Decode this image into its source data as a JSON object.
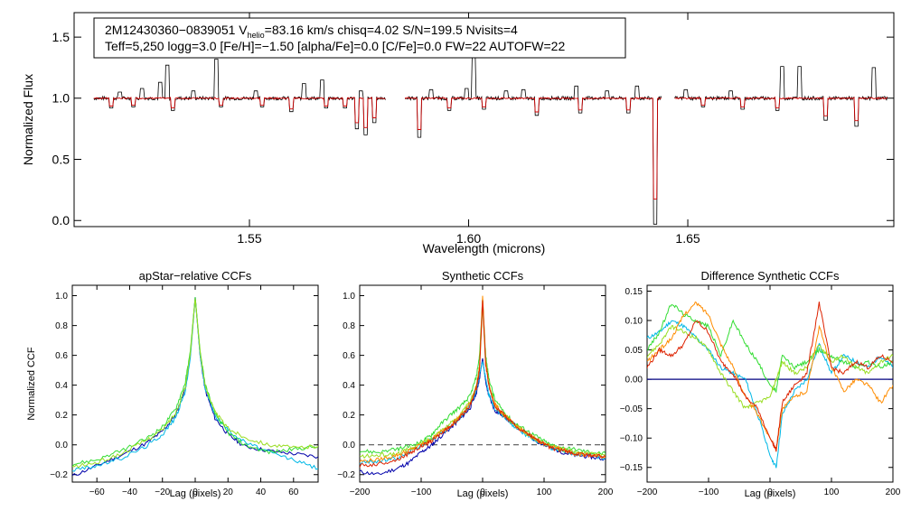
{
  "colors": {
    "observed": "#000000",
    "model": "#cc0000",
    "zero_line": "#000080",
    "dashed": "#555555",
    "series": [
      "#0000aa",
      "#00b8e6",
      "#33dd33",
      "#99dd22",
      "#ff8c00",
      "#dd2200"
    ]
  },
  "chart_data": [
    {
      "id": "spectrum",
      "type": "line",
      "title": "",
      "info_line1_prefix": "2M12430360−0839051  V",
      "info_line1_sub": "helio",
      "info_line1_suffix": "=83.16 km/s  chisq=4.02  S/N=199.5  Nvisits=4",
      "info_line2": "Teff=5,250 logg=3.0 [Fe/H]=−1.50 [alpha/Fe]=0.0 [C/Fe]=0.0 FW=22 AUTOFW=22",
      "xlabel": "Wavelength (microns)",
      "ylabel": "Normalized Flux",
      "xlim": [
        1.51,
        1.697
      ],
      "ylim": [
        -0.05,
        1.7
      ],
      "xticks": [
        1.55,
        1.6,
        1.65
      ],
      "xtick_labels": [
        "1.55",
        "1.60",
        "1.65"
      ],
      "yticks": [
        0.0,
        0.5,
        1.0,
        1.5
      ],
      "ytick_labels": [
        "0.0",
        "0.5",
        "1.0",
        "1.5"
      ],
      "chips": [
        [
          1.5145,
          1.581
        ],
        [
          1.5855,
          1.644
        ],
        [
          1.647,
          1.6955
        ]
      ],
      "series": [
        {
          "name": "observed",
          "continuum": 1.0
        },
        {
          "name": "model",
          "continuum": 1.0
        }
      ],
      "emission_lines": [
        {
          "x": 1.5205,
          "y": 1.05
        },
        {
          "x": 1.5255,
          "y": 1.08
        },
        {
          "x": 1.5297,
          "y": 1.13
        },
        {
          "x": 1.5312,
          "y": 1.27
        },
        {
          "x": 1.5372,
          "y": 1.06
        },
        {
          "x": 1.5425,
          "y": 1.32
        },
        {
          "x": 1.5515,
          "y": 1.06
        },
        {
          "x": 1.5625,
          "y": 1.12
        },
        {
          "x": 1.5665,
          "y": 1.15
        },
        {
          "x": 1.5755,
          "y": 1.06
        },
        {
          "x": 1.5915,
          "y": 1.07
        },
        {
          "x": 1.5995,
          "y": 1.08
        },
        {
          "x": 1.6012,
          "y": 1.33
        },
        {
          "x": 1.6085,
          "y": 1.06
        },
        {
          "x": 1.6125,
          "y": 1.07
        },
        {
          "x": 1.6245,
          "y": 1.1
        },
        {
          "x": 1.6315,
          "y": 1.06
        },
        {
          "x": 1.6385,
          "y": 1.1
        },
        {
          "x": 1.6495,
          "y": 1.07
        },
        {
          "x": 1.6598,
          "y": 1.06
        },
        {
          "x": 1.6715,
          "y": 1.26
        },
        {
          "x": 1.6755,
          "y": 1.26
        },
        {
          "x": 1.6925,
          "y": 1.25
        }
      ],
      "absorption_lines": [
        {
          "x": 1.5185,
          "y": 0.92
        },
        {
          "x": 1.5235,
          "y": 0.93
        },
        {
          "x": 1.5325,
          "y": 0.9
        },
        {
          "x": 1.5435,
          "y": 0.93
        },
        {
          "x": 1.5528,
          "y": 0.93
        },
        {
          "x": 1.5595,
          "y": 0.89
        },
        {
          "x": 1.5675,
          "y": 0.92
        },
        {
          "x": 1.5718,
          "y": 0.92
        },
        {
          "x": 1.5745,
          "y": 0.75
        },
        {
          "x": 1.5765,
          "y": 0.7
        },
        {
          "x": 1.5785,
          "y": 0.8
        },
        {
          "x": 1.5888,
          "y": 0.68
        },
        {
          "x": 1.5955,
          "y": 0.9
        },
        {
          "x": 1.6035,
          "y": 0.91
        },
        {
          "x": 1.6155,
          "y": 0.86
        },
        {
          "x": 1.6255,
          "y": 0.88
        },
        {
          "x": 1.6365,
          "y": 0.88
        },
        {
          "x": 1.6425,
          "y": -0.03
        },
        {
          "x": 1.6535,
          "y": 0.93
        },
        {
          "x": 1.6625,
          "y": 0.91
        },
        {
          "x": 1.6705,
          "y": 0.9
        },
        {
          "x": 1.6815,
          "y": 0.82
        },
        {
          "x": 1.6885,
          "y": 0.77
        }
      ]
    },
    {
      "id": "apstar_ccf",
      "type": "line",
      "title": "apStar−relative CCFs",
      "xlabel": "Lag (pixels)",
      "ylabel": "Normalized CCF",
      "xlim": [
        -75,
        75
      ],
      "ylim": [
        -0.25,
        1.07
      ],
      "xticks": [
        -60,
        -40,
        -20,
        0,
        20,
        40,
        60
      ],
      "xtick_labels": [
        "−60",
        "−40",
        "−20",
        "0",
        "20",
        "40",
        "60"
      ],
      "yticks": [
        -0.2,
        0.0,
        0.2,
        0.4,
        0.6,
        0.8,
        1.0
      ],
      "ytick_labels": [
        "−0.2",
        "0.0",
        "0.2",
        "0.4",
        "0.6",
        "0.8",
        "1.0"
      ],
      "x": [
        -75,
        -60,
        -45,
        -30,
        -20,
        -12,
        -6,
        -3,
        0,
        3,
        6,
        12,
        20,
        30,
        45,
        60,
        75
      ],
      "series": [
        {
          "name": "ccf-1",
          "values": [
            -0.21,
            -0.14,
            -0.07,
            0.01,
            0.09,
            0.2,
            0.38,
            0.6,
            0.99,
            0.6,
            0.37,
            0.18,
            0.07,
            -0.01,
            -0.04,
            -0.06,
            -0.08
          ]
        },
        {
          "name": "ccf-2",
          "values": [
            -0.17,
            -0.14,
            -0.09,
            -0.01,
            0.07,
            0.18,
            0.36,
            0.58,
            0.98,
            0.6,
            0.38,
            0.2,
            0.1,
            0.02,
            -0.05,
            -0.1,
            -0.16
          ]
        },
        {
          "name": "ccf-3",
          "values": [
            -0.13,
            -0.1,
            -0.04,
            0.04,
            0.12,
            0.24,
            0.42,
            0.63,
            0.99,
            0.63,
            0.41,
            0.21,
            0.08,
            0.0,
            -0.05,
            -0.03,
            -0.01
          ]
        },
        {
          "name": "ccf-4",
          "values": [
            -0.15,
            -0.12,
            -0.06,
            0.03,
            0.1,
            0.21,
            0.39,
            0.61,
            0.98,
            0.62,
            0.4,
            0.22,
            0.11,
            0.05,
            0.0,
            -0.02,
            -0.01
          ]
        }
      ]
    },
    {
      "id": "synthetic_ccf",
      "type": "line",
      "title": "Synthetic CCFs",
      "xlabel": "Lag (pixels)",
      "ylabel": "",
      "xlim": [
        -200,
        200
      ],
      "ylim": [
        -0.25,
        1.07
      ],
      "reference_line": 0.0,
      "xticks": [
        -200,
        -100,
        0,
        100,
        200
      ],
      "xtick_labels": [
        "−200",
        "−100",
        "0",
        "100",
        "200"
      ],
      "yticks": [
        -0.2,
        0.0,
        0.2,
        0.4,
        0.6,
        0.8,
        1.0
      ],
      "ytick_labels": [
        "−0.2",
        "0.0",
        "0.2",
        "0.4",
        "0.6",
        "0.8",
        "1.0"
      ],
      "x": [
        -200,
        -170,
        -140,
        -120,
        -100,
        -85,
        -70,
        -50,
        -35,
        -20,
        -10,
        -5,
        0,
        5,
        10,
        20,
        35,
        50,
        70,
        90,
        110,
        130,
        150,
        175,
        200
      ],
      "series": [
        {
          "name": "synth-1",
          "values": [
            -0.18,
            -0.2,
            -0.16,
            -0.12,
            -0.05,
            -0.01,
            0.05,
            0.12,
            0.18,
            0.25,
            0.35,
            0.45,
            0.58,
            0.42,
            0.33,
            0.23,
            0.19,
            0.14,
            0.08,
            0.02,
            -0.02,
            -0.05,
            -0.07,
            -0.08,
            -0.1
          ]
        },
        {
          "name": "synth-2",
          "values": [
            -0.12,
            -0.11,
            -0.09,
            -0.05,
            0.0,
            0.03,
            0.07,
            0.13,
            0.19,
            0.27,
            0.37,
            0.47,
            0.56,
            0.44,
            0.34,
            0.24,
            0.19,
            0.13,
            0.07,
            0.02,
            -0.02,
            -0.04,
            -0.06,
            -0.07,
            -0.09
          ]
        },
        {
          "name": "synth-3",
          "values": [
            -0.04,
            -0.05,
            -0.03,
            -0.01,
            0.02,
            0.06,
            0.13,
            0.21,
            0.26,
            0.33,
            0.46,
            0.6,
            0.98,
            0.6,
            0.45,
            0.3,
            0.22,
            0.15,
            0.1,
            0.05,
            0.0,
            -0.02,
            -0.03,
            -0.05,
            -0.06
          ]
        },
        {
          "name": "synth-4",
          "values": [
            -0.08,
            -0.07,
            -0.06,
            -0.03,
            0.01,
            0.04,
            0.09,
            0.15,
            0.21,
            0.29,
            0.4,
            0.52,
            0.93,
            0.55,
            0.4,
            0.27,
            0.2,
            0.14,
            0.08,
            0.03,
            -0.01,
            -0.03,
            -0.05,
            -0.06,
            -0.07
          ]
        },
        {
          "name": "synth-5",
          "values": [
            -0.11,
            -0.1,
            -0.07,
            -0.04,
            0.0,
            0.03,
            0.08,
            0.14,
            0.2,
            0.28,
            0.39,
            0.53,
            1.0,
            0.56,
            0.41,
            0.27,
            0.2,
            0.14,
            0.08,
            0.03,
            -0.01,
            -0.03,
            -0.06,
            -0.07,
            -0.08
          ]
        },
        {
          "name": "synth-6",
          "values": [
            -0.14,
            -0.13,
            -0.1,
            -0.06,
            -0.01,
            0.02,
            0.07,
            0.13,
            0.19,
            0.27,
            0.38,
            0.5,
            0.97,
            0.54,
            0.4,
            0.26,
            0.2,
            0.14,
            0.08,
            0.03,
            -0.02,
            -0.04,
            -0.06,
            -0.07,
            -0.08
          ]
        }
      ]
    },
    {
      "id": "difference_ccf",
      "type": "line",
      "title": "Difference Synthetic CCFs",
      "xlabel": "Lag (pixels)",
      "ylabel": "",
      "xlim": [
        -200,
        200
      ],
      "ylim": [
        -0.175,
        0.16
      ],
      "reference_line": 0.0,
      "xticks": [
        -200,
        -100,
        0,
        100,
        200
      ],
      "xtick_labels": [
        "−200",
        "−100",
        "0",
        "100",
        "200"
      ],
      "yticks": [
        -0.15,
        -0.1,
        -0.05,
        0.0,
        0.05,
        0.1,
        0.15
      ],
      "ytick_labels": [
        "−0.15",
        "−0.10",
        "−0.05",
        "0.00",
        "0.05",
        "0.10",
        "0.15"
      ],
      "x": [
        -200,
        -180,
        -160,
        -140,
        -120,
        -100,
        -80,
        -60,
        -40,
        -20,
        0,
        10,
        20,
        40,
        60,
        80,
        100,
        120,
        140,
        160,
        180,
        200
      ],
      "series": [
        {
          "name": "diff-1",
          "values": [
            0.07,
            0.08,
            0.1,
            0.09,
            0.07,
            0.05,
            0.02,
            0.01,
            0.0,
            -0.06,
            -0.13,
            -0.15,
            -0.06,
            -0.02,
            0.0,
            0.06,
            0.01,
            0.04,
            0.03,
            0.02,
            0.04,
            0.02
          ]
        },
        {
          "name": "diff-2",
          "values": [
            0.05,
            0.08,
            0.13,
            0.11,
            0.1,
            0.09,
            0.04,
            0.1,
            0.06,
            0.03,
            -0.01,
            -0.02,
            0.04,
            0.02,
            0.03,
            0.05,
            0.04,
            0.03,
            0.02,
            0.03,
            0.02,
            0.03
          ]
        },
        {
          "name": "diff-3",
          "values": [
            0.04,
            0.06,
            0.09,
            0.08,
            0.07,
            0.05,
            0.01,
            -0.02,
            -0.05,
            -0.04,
            -0.03,
            0.0,
            0.03,
            0.01,
            0.02,
            0.06,
            0.03,
            0.04,
            0.02,
            0.01,
            0.03,
            0.04
          ]
        },
        {
          "name": "diff-4",
          "values": [
            0.03,
            0.05,
            0.07,
            0.11,
            0.13,
            0.11,
            0.06,
            0.02,
            -0.03,
            -0.06,
            -0.1,
            -0.12,
            -0.05,
            -0.03,
            -0.02,
            0.09,
            0.02,
            -0.02,
            0.0,
            -0.01,
            -0.04,
            -0.01
          ]
        },
        {
          "name": "diff-5",
          "values": [
            0.02,
            0.05,
            0.04,
            0.06,
            0.1,
            0.08,
            0.03,
            0.01,
            -0.03,
            -0.05,
            -0.1,
            -0.12,
            -0.04,
            -0.01,
            0.01,
            0.13,
            0.02,
            0.01,
            0.03,
            0.02,
            0.04,
            0.03
          ]
        }
      ]
    }
  ]
}
